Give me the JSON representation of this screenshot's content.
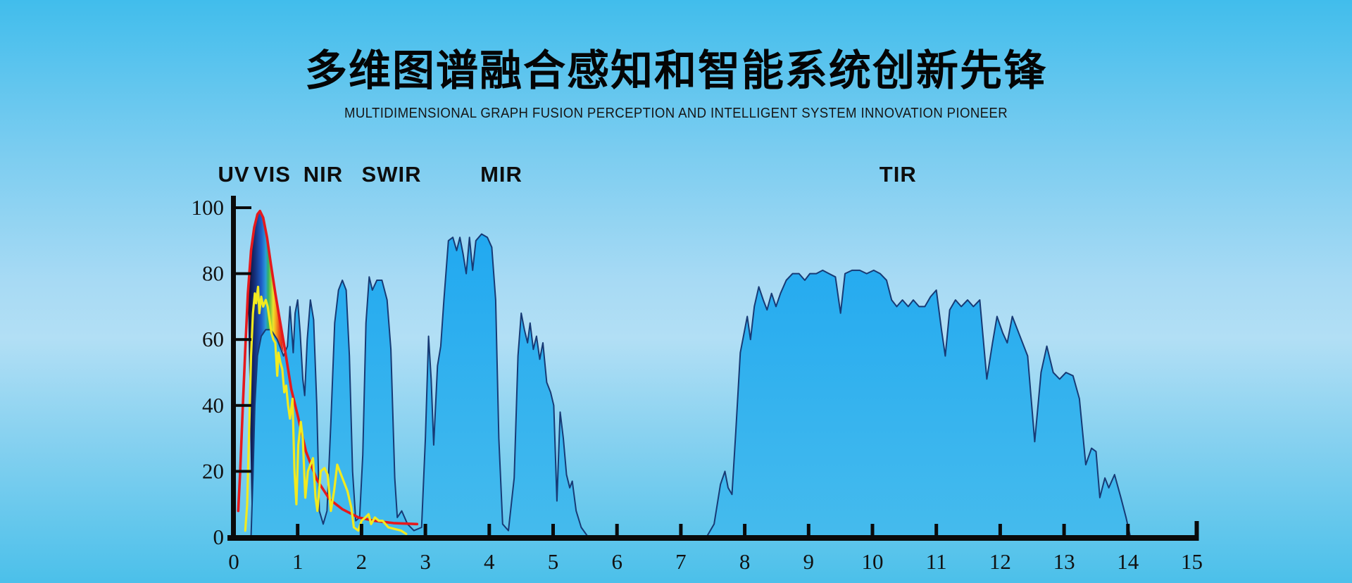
{
  "title": "多维图谱融合感知和智能系统创新先锋",
  "subtitle": "MULTIDIMENSIONAL GRAPH FUSION PERCEPTION AND INTELLIGENT SYSTEM INNOVATION PIONEER",
  "colors": {
    "background_top": "#41bdec",
    "background_middle": "#b2dff5",
    "background_bottom": "#4bc0ea",
    "window_fill": "#20a8f0",
    "window_fill_bottom": "#45bbed",
    "window_stroke": "#173a75",
    "blackbody_curve": "#e6191c",
    "solar_curve": "#f2ea1f",
    "axis": "#0a0a0a",
    "rainbow_stops": [
      "#0d0d30",
      "#15307c",
      "#1e5ec6",
      "#2b9bd8",
      "#2fb06a",
      "#8cc93c",
      "#efe32b",
      "#f4a21e",
      "#e84e1a",
      "#dc1d17"
    ]
  },
  "chart_data": {
    "type": "area",
    "title": "",
    "xlabel": "",
    "ylabel": "",
    "xlim": [
      0,
      15
    ],
    "ylim": [
      0,
      100
    ],
    "grid": false,
    "legend": "none",
    "x_ticks": [
      0,
      1,
      2,
      3,
      4,
      5,
      6,
      7,
      8,
      9,
      10,
      11,
      12,
      13,
      14,
      15
    ],
    "y_ticks": [
      0,
      20,
      40,
      60,
      80,
      100
    ],
    "band_labels": [
      {
        "label": "UV",
        "x": 0.0
      },
      {
        "label": "VIS",
        "x": 0.6
      },
      {
        "label": "NIR",
        "x": 1.4
      },
      {
        "label": "SWIR",
        "x": 2.47
      },
      {
        "label": "MIR",
        "x": 4.19
      },
      {
        "label": "TIR",
        "x": 10.4
      }
    ],
    "series": [
      {
        "name": "atmospheric-transmission-windows",
        "type": "area",
        "points": [
          [
            0,
            0
          ],
          [
            0.27,
            0
          ],
          [
            0.3,
            18
          ],
          [
            0.33,
            40
          ],
          [
            0.37,
            55
          ],
          [
            0.43,
            61
          ],
          [
            0.5,
            63
          ],
          [
            0.58,
            63
          ],
          [
            0.68,
            60
          ],
          [
            0.78,
            55
          ],
          [
            0.84,
            58
          ],
          [
            0.88,
            70
          ],
          [
            0.91,
            62
          ],
          [
            0.93,
            56
          ],
          [
            0.96,
            68
          ],
          [
            1.0,
            72
          ],
          [
            1.04,
            62
          ],
          [
            1.08,
            48
          ],
          [
            1.11,
            43
          ],
          [
            1.15,
            60
          ],
          [
            1.2,
            72
          ],
          [
            1.25,
            66
          ],
          [
            1.3,
            40
          ],
          [
            1.34,
            8
          ],
          [
            1.4,
            4
          ],
          [
            1.46,
            8
          ],
          [
            1.52,
            35
          ],
          [
            1.58,
            65
          ],
          [
            1.64,
            75
          ],
          [
            1.7,
            78
          ],
          [
            1.76,
            75
          ],
          [
            1.81,
            55
          ],
          [
            1.86,
            20
          ],
          [
            1.91,
            5
          ],
          [
            1.97,
            6
          ],
          [
            2.02,
            25
          ],
          [
            2.07,
            65
          ],
          [
            2.12,
            79
          ],
          [
            2.17,
            75
          ],
          [
            2.24,
            78
          ],
          [
            2.32,
            78
          ],
          [
            2.4,
            72
          ],
          [
            2.46,
            57
          ],
          [
            2.52,
            18
          ],
          [
            2.56,
            6
          ],
          [
            2.63,
            8
          ],
          [
            2.72,
            4
          ],
          [
            2.82,
            2
          ],
          [
            2.94,
            3
          ],
          [
            3.0,
            30
          ],
          [
            3.05,
            61
          ],
          [
            3.09,
            48
          ],
          [
            3.13,
            28
          ],
          [
            3.19,
            52
          ],
          [
            3.24,
            58
          ],
          [
            3.29,
            72
          ],
          [
            3.36,
            90
          ],
          [
            3.43,
            91
          ],
          [
            3.49,
            87
          ],
          [
            3.54,
            91
          ],
          [
            3.59,
            86
          ],
          [
            3.64,
            80
          ],
          [
            3.69,
            91
          ],
          [
            3.74,
            81
          ],
          [
            3.79,
            90
          ],
          [
            3.88,
            92
          ],
          [
            3.97,
            91
          ],
          [
            4.04,
            88
          ],
          [
            4.1,
            72
          ],
          [
            4.15,
            30
          ],
          [
            4.21,
            4
          ],
          [
            4.3,
            2
          ],
          [
            4.39,
            18
          ],
          [
            4.45,
            55
          ],
          [
            4.5,
            68
          ],
          [
            4.55,
            63
          ],
          [
            4.6,
            59
          ],
          [
            4.64,
            65
          ],
          [
            4.69,
            57
          ],
          [
            4.74,
            61
          ],
          [
            4.79,
            54
          ],
          [
            4.84,
            59
          ],
          [
            4.9,
            47
          ],
          [
            4.96,
            44
          ],
          [
            5.01,
            40
          ],
          [
            5.06,
            11
          ],
          [
            5.11,
            38
          ],
          [
            5.16,
            30
          ],
          [
            5.21,
            19
          ],
          [
            5.26,
            15
          ],
          [
            5.3,
            17
          ],
          [
            5.36,
            8
          ],
          [
            5.44,
            3
          ],
          [
            5.55,
            0
          ],
          [
            7.4,
            0
          ],
          [
            7.52,
            4
          ],
          [
            7.62,
            16
          ],
          [
            7.69,
            20
          ],
          [
            7.74,
            15
          ],
          [
            7.8,
            13
          ],
          [
            7.86,
            32
          ],
          [
            7.93,
            56
          ],
          [
            7.99,
            62
          ],
          [
            8.04,
            67
          ],
          [
            8.09,
            60
          ],
          [
            8.15,
            70
          ],
          [
            8.22,
            76
          ],
          [
            8.29,
            72
          ],
          [
            8.35,
            69
          ],
          [
            8.42,
            74
          ],
          [
            8.49,
            70
          ],
          [
            8.56,
            74
          ],
          [
            8.65,
            78
          ],
          [
            8.75,
            80
          ],
          [
            8.85,
            80
          ],
          [
            8.94,
            78
          ],
          [
            9.02,
            80
          ],
          [
            9.12,
            80
          ],
          [
            9.22,
            81
          ],
          [
            9.32,
            80
          ],
          [
            9.42,
            79
          ],
          [
            9.5,
            68
          ],
          [
            9.57,
            80
          ],
          [
            9.68,
            81
          ],
          [
            9.8,
            81
          ],
          [
            9.91,
            80
          ],
          [
            10.02,
            81
          ],
          [
            10.12,
            80
          ],
          [
            10.22,
            78
          ],
          [
            10.3,
            72
          ],
          [
            10.38,
            70
          ],
          [
            10.47,
            72
          ],
          [
            10.56,
            70
          ],
          [
            10.64,
            72
          ],
          [
            10.73,
            70
          ],
          [
            10.82,
            70
          ],
          [
            10.91,
            73
          ],
          [
            11.0,
            75
          ],
          [
            11.08,
            63
          ],
          [
            11.14,
            55
          ],
          [
            11.21,
            69
          ],
          [
            11.3,
            72
          ],
          [
            11.39,
            70
          ],
          [
            11.49,
            72
          ],
          [
            11.58,
            70
          ],
          [
            11.68,
            72
          ],
          [
            11.79,
            48
          ],
          [
            11.88,
            59
          ],
          [
            11.95,
            67
          ],
          [
            12.04,
            62
          ],
          [
            12.11,
            59
          ],
          [
            12.19,
            67
          ],
          [
            12.29,
            62
          ],
          [
            12.43,
            55
          ],
          [
            12.54,
            29
          ],
          [
            12.64,
            50
          ],
          [
            12.73,
            58
          ],
          [
            12.83,
            50
          ],
          [
            12.93,
            48
          ],
          [
            13.03,
            50
          ],
          [
            13.14,
            49
          ],
          [
            13.24,
            42
          ],
          [
            13.34,
            22
          ],
          [
            13.43,
            27
          ],
          [
            13.5,
            26
          ],
          [
            13.56,
            12
          ],
          [
            13.64,
            18
          ],
          [
            13.7,
            15
          ],
          [
            13.79,
            19
          ],
          [
            13.89,
            12
          ],
          [
            13.97,
            6
          ],
          [
            14.04,
            0
          ],
          [
            15,
            0
          ]
        ]
      },
      {
        "name": "visible-spectrum-rainbow-peak",
        "type": "polygon",
        "gradient_x_range": [
          0.22,
          0.78
        ],
        "points": [
          [
            0.22,
            74
          ],
          [
            0.27,
            87
          ],
          [
            0.32,
            94
          ],
          [
            0.37,
            98
          ],
          [
            0.41,
            99
          ],
          [
            0.46,
            97
          ],
          [
            0.52,
            91
          ],
          [
            0.58,
            83
          ],
          [
            0.65,
            74
          ],
          [
            0.72,
            66
          ],
          [
            0.78,
            56
          ],
          [
            0.68,
            60
          ],
          [
            0.58,
            63
          ],
          [
            0.5,
            63
          ],
          [
            0.43,
            61
          ],
          [
            0.37,
            55
          ],
          [
            0.33,
            40
          ],
          [
            0.3,
            18
          ],
          [
            0.28,
            6
          ]
        ]
      },
      {
        "name": "blackbody-radiation-envelope",
        "type": "line",
        "points": [
          [
            0.07,
            8
          ],
          [
            0.1,
            20
          ],
          [
            0.14,
            39
          ],
          [
            0.18,
            57
          ],
          [
            0.22,
            74
          ],
          [
            0.27,
            87
          ],
          [
            0.32,
            94
          ],
          [
            0.37,
            98
          ],
          [
            0.41,
            99
          ],
          [
            0.46,
            97
          ],
          [
            0.52,
            91
          ],
          [
            0.58,
            83
          ],
          [
            0.65,
            74
          ],
          [
            0.72,
            66
          ],
          [
            0.8,
            57
          ],
          [
            0.9,
            45
          ],
          [
            1.0,
            37
          ],
          [
            1.13,
            26
          ],
          [
            1.3,
            17.5
          ],
          [
            1.5,
            11.5
          ],
          [
            1.7,
            8.5
          ],
          [
            1.95,
            6
          ],
          [
            2.2,
            5
          ],
          [
            2.5,
            4.3
          ],
          [
            2.87,
            4
          ]
        ]
      },
      {
        "name": "solar-irradiance-spectrum",
        "type": "line",
        "points": [
          [
            0.18,
            2
          ],
          [
            0.21,
            10
          ],
          [
            0.24,
            32
          ],
          [
            0.27,
            55
          ],
          [
            0.3,
            68
          ],
          [
            0.33,
            74
          ],
          [
            0.35,
            71
          ],
          [
            0.38,
            76
          ],
          [
            0.4,
            68
          ],
          [
            0.43,
            73
          ],
          [
            0.46,
            70
          ],
          [
            0.5,
            72
          ],
          [
            0.53,
            70
          ],
          [
            0.56,
            66
          ],
          [
            0.59,
            62
          ],
          [
            0.62,
            60
          ],
          [
            0.65,
            59
          ],
          [
            0.68,
            49
          ],
          [
            0.7,
            56
          ],
          [
            0.73,
            53
          ],
          [
            0.76,
            51
          ],
          [
            0.79,
            44
          ],
          [
            0.82,
            46
          ],
          [
            0.85,
            40
          ],
          [
            0.88,
            36
          ],
          [
            0.92,
            42
          ],
          [
            0.95,
            20
          ],
          [
            0.98,
            10
          ],
          [
            1.01,
            28
          ],
          [
            1.05,
            35
          ],
          [
            1.08,
            30
          ],
          [
            1.12,
            12
          ],
          [
            1.16,
            20
          ],
          [
            1.2,
            22
          ],
          [
            1.24,
            24
          ],
          [
            1.28,
            12
          ],
          [
            1.31,
            8
          ],
          [
            1.36,
            20
          ],
          [
            1.42,
            21
          ],
          [
            1.47,
            19
          ],
          [
            1.52,
            8
          ],
          [
            1.57,
            14
          ],
          [
            1.62,
            22
          ],
          [
            1.7,
            18
          ],
          [
            1.78,
            14
          ],
          [
            1.84,
            9
          ],
          [
            1.88,
            3
          ],
          [
            1.95,
            2
          ],
          [
            2.0,
            5
          ],
          [
            2.06,
            6
          ],
          [
            2.11,
            7
          ],
          [
            2.15,
            4
          ],
          [
            2.21,
            6
          ],
          [
            2.27,
            5
          ],
          [
            2.33,
            5
          ],
          [
            2.42,
            3
          ],
          [
            2.52,
            2.5
          ],
          [
            2.62,
            2
          ],
          [
            2.7,
            1
          ]
        ]
      }
    ]
  }
}
